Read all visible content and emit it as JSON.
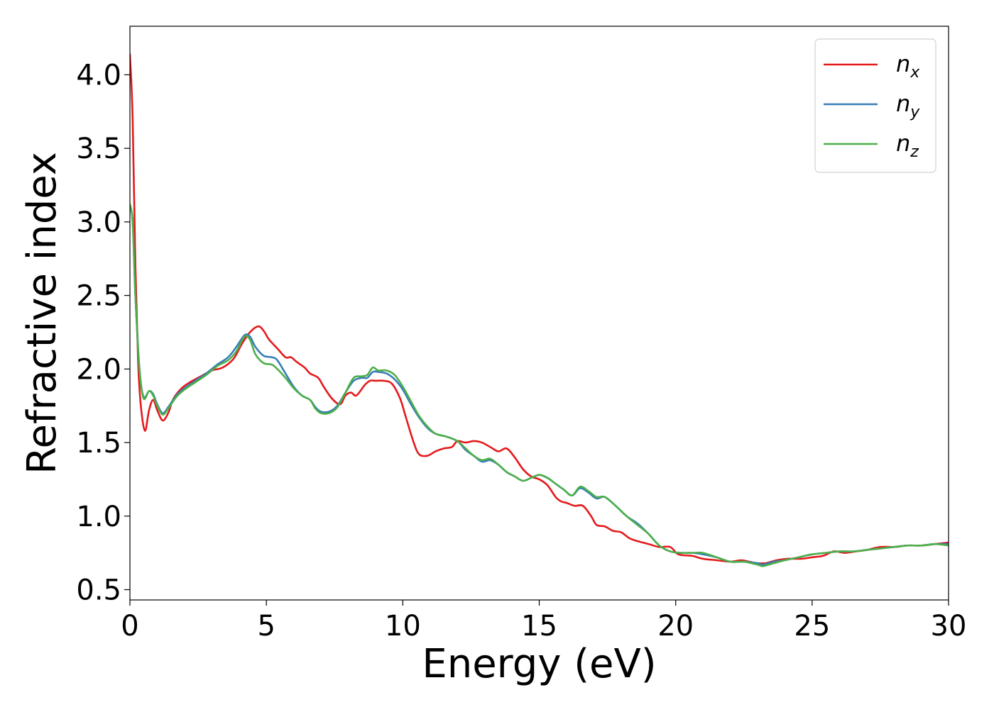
{
  "chart_data": {
    "type": "line",
    "title": "",
    "xlabel": "Energy (eV)",
    "ylabel": "Refractive index",
    "xlim": [
      0,
      30
    ],
    "ylim": [
      0.43,
      4.33
    ],
    "xticks": [
      0,
      5,
      10,
      15,
      20,
      25,
      30
    ],
    "xtick_labels": [
      "0",
      "5",
      "10",
      "15",
      "20",
      "25",
      "30"
    ],
    "yticks": [
      0.5,
      1.0,
      1.5,
      2.0,
      2.5,
      3.0,
      3.5,
      4.0
    ],
    "ytick_labels": [
      "0.5",
      "1.0",
      "1.5",
      "2.0",
      "2.5",
      "3.0",
      "3.5",
      "4.0"
    ],
    "grid": false,
    "legend_position": "top-right",
    "series": [
      {
        "name": "n_x",
        "label_base": "n",
        "label_sub": "x",
        "color": "#e41a1c",
        "x": [
          0,
          0.1,
          0.2,
          0.3,
          0.4,
          0.55,
          0.7,
          0.85,
          1.0,
          1.2,
          1.4,
          1.6,
          1.9,
          2.2,
          2.6,
          3.0,
          3.4,
          3.8,
          4.1,
          4.4,
          4.7,
          4.9,
          5.1,
          5.4,
          5.7,
          5.9,
          6.1,
          6.4,
          6.6,
          6.9,
          7.1,
          7.4,
          7.7,
          7.9,
          8.1,
          8.3,
          8.6,
          8.8,
          9.0,
          9.3,
          9.6,
          9.9,
          10.1,
          10.4,
          10.6,
          10.9,
          11.2,
          11.5,
          11.8,
          12.0,
          12.3,
          12.6,
          12.9,
          13.2,
          13.5,
          13.8,
          14.1,
          14.4,
          14.7,
          15.0,
          15.3,
          15.6,
          15.8,
          16.0,
          16.3,
          16.6,
          16.9,
          17.1,
          17.4,
          17.7,
          18.0,
          18.3,
          18.6,
          19.0,
          19.4,
          19.8,
          20.1,
          20.6,
          21.0,
          21.5,
          22.0,
          22.4,
          22.7,
          23.0,
          23.3,
          23.7,
          24.1,
          24.6,
          25.0,
          25.4,
          25.8,
          26.2,
          26.6,
          27.0,
          27.5,
          28.0,
          28.5,
          29.0,
          29.5,
          30.0
        ],
        "y": [
          4.14,
          3.7,
          2.7,
          2.05,
          1.75,
          1.58,
          1.72,
          1.79,
          1.72,
          1.65,
          1.7,
          1.8,
          1.87,
          1.91,
          1.95,
          1.99,
          2.01,
          2.07,
          2.17,
          2.25,
          2.29,
          2.26,
          2.2,
          2.14,
          2.08,
          2.08,
          2.05,
          2.01,
          1.97,
          1.94,
          1.88,
          1.8,
          1.76,
          1.82,
          1.84,
          1.82,
          1.89,
          1.92,
          1.92,
          1.92,
          1.9,
          1.8,
          1.68,
          1.5,
          1.42,
          1.41,
          1.44,
          1.46,
          1.47,
          1.51,
          1.5,
          1.51,
          1.5,
          1.47,
          1.44,
          1.46,
          1.4,
          1.32,
          1.27,
          1.25,
          1.21,
          1.13,
          1.1,
          1.09,
          1.07,
          1.07,
          1.0,
          0.94,
          0.93,
          0.9,
          0.89,
          0.85,
          0.83,
          0.81,
          0.79,
          0.79,
          0.74,
          0.73,
          0.71,
          0.7,
          0.69,
          0.7,
          0.69,
          0.68,
          0.68,
          0.7,
          0.71,
          0.71,
          0.72,
          0.73,
          0.76,
          0.75,
          0.76,
          0.77,
          0.79,
          0.79,
          0.8,
          0.8,
          0.81,
          0.82
        ]
      },
      {
        "name": "n_y",
        "label_base": "n",
        "label_sub": "y",
        "color": "#377eb8",
        "x": [
          0,
          0.1,
          0.2,
          0.35,
          0.5,
          0.7,
          0.85,
          1.0,
          1.2,
          1.4,
          1.7,
          2.0,
          2.4,
          2.8,
          3.2,
          3.6,
          3.9,
          4.2,
          4.4,
          4.6,
          4.9,
          5.2,
          5.4,
          5.7,
          6.0,
          6.3,
          6.6,
          6.8,
          7.0,
          7.3,
          7.6,
          7.9,
          8.2,
          8.5,
          8.7,
          8.9,
          9.1,
          9.4,
          9.7,
          10.0,
          10.3,
          10.6,
          10.9,
          11.2,
          11.6,
          12.0,
          12.3,
          12.6,
          12.9,
          13.2,
          13.5,
          13.8,
          14.1,
          14.4,
          14.7,
          15.0,
          15.3,
          15.6,
          15.9,
          16.2,
          16.5,
          16.8,
          17.1,
          17.4,
          17.8,
          18.2,
          18.6,
          19.0,
          19.4,
          19.8,
          20.2,
          20.6,
          21.0,
          21.5,
          22.0,
          22.5,
          23.0,
          23.2,
          23.6,
          24.0,
          24.5,
          25.0,
          25.5,
          26.0,
          26.5,
          27.0,
          27.5,
          28.0,
          28.5,
          29.0,
          29.5,
          30.0
        ],
        "y": [
          3.1,
          3.0,
          2.5,
          2.0,
          1.81,
          1.85,
          1.83,
          1.76,
          1.7,
          1.74,
          1.82,
          1.87,
          1.92,
          1.97,
          2.03,
          2.08,
          2.15,
          2.23,
          2.22,
          2.15,
          2.09,
          2.08,
          2.06,
          1.97,
          1.88,
          1.82,
          1.79,
          1.74,
          1.71,
          1.71,
          1.75,
          1.84,
          1.92,
          1.94,
          1.94,
          1.98,
          1.98,
          1.97,
          1.93,
          1.86,
          1.76,
          1.67,
          1.6,
          1.56,
          1.54,
          1.51,
          1.45,
          1.41,
          1.37,
          1.38,
          1.35,
          1.3,
          1.27,
          1.24,
          1.26,
          1.28,
          1.26,
          1.22,
          1.18,
          1.14,
          1.19,
          1.16,
          1.12,
          1.13,
          1.07,
          1.0,
          0.95,
          0.88,
          0.8,
          0.76,
          0.75,
          0.75,
          0.74,
          0.72,
          0.69,
          0.69,
          0.68,
          0.67,
          0.69,
          0.7,
          0.72,
          0.74,
          0.75,
          0.76,
          0.76,
          0.77,
          0.78,
          0.79,
          0.8,
          0.8,
          0.81,
          0.81
        ]
      },
      {
        "name": "n_z",
        "label_base": "n",
        "label_sub": "z",
        "color": "#4daf4a",
        "x": [
          0,
          0.1,
          0.2,
          0.35,
          0.5,
          0.7,
          0.85,
          1.0,
          1.2,
          1.4,
          1.7,
          2.0,
          2.4,
          2.8,
          3.2,
          3.6,
          3.9,
          4.2,
          4.4,
          4.6,
          4.9,
          5.2,
          5.4,
          5.7,
          6.0,
          6.3,
          6.6,
          6.8,
          7.0,
          7.3,
          7.6,
          7.9,
          8.2,
          8.5,
          8.7,
          8.9,
          9.1,
          9.4,
          9.7,
          10.0,
          10.3,
          10.6,
          10.9,
          11.2,
          11.6,
          12.0,
          12.3,
          12.6,
          12.9,
          13.2,
          13.5,
          13.8,
          14.1,
          14.4,
          14.7,
          15.0,
          15.3,
          15.6,
          15.9,
          16.2,
          16.5,
          16.8,
          17.1,
          17.4,
          17.8,
          18.2,
          18.6,
          19.0,
          19.4,
          19.8,
          20.2,
          20.6,
          21.0,
          21.5,
          22.0,
          22.5,
          23.0,
          23.2,
          23.6,
          24.0,
          24.5,
          25.0,
          25.5,
          26.0,
          26.5,
          27.0,
          27.5,
          28.0,
          28.5,
          29.0,
          29.5,
          30.0
        ],
        "y": [
          3.12,
          3.0,
          2.5,
          2.0,
          1.8,
          1.85,
          1.82,
          1.75,
          1.69,
          1.73,
          1.81,
          1.86,
          1.91,
          1.96,
          2.02,
          2.06,
          2.12,
          2.22,
          2.2,
          2.1,
          2.04,
          2.03,
          2.0,
          1.94,
          1.87,
          1.82,
          1.79,
          1.73,
          1.7,
          1.7,
          1.74,
          1.84,
          1.94,
          1.95,
          1.96,
          2.01,
          1.99,
          1.99,
          1.96,
          1.88,
          1.78,
          1.68,
          1.61,
          1.56,
          1.54,
          1.51,
          1.46,
          1.41,
          1.38,
          1.39,
          1.35,
          1.3,
          1.27,
          1.24,
          1.26,
          1.28,
          1.26,
          1.22,
          1.18,
          1.14,
          1.2,
          1.17,
          1.13,
          1.13,
          1.07,
          1.0,
          0.94,
          0.88,
          0.8,
          0.76,
          0.75,
          0.75,
          0.75,
          0.72,
          0.69,
          0.69,
          0.67,
          0.66,
          0.68,
          0.7,
          0.72,
          0.74,
          0.75,
          0.76,
          0.76,
          0.77,
          0.78,
          0.79,
          0.8,
          0.8,
          0.81,
          0.8
        ]
      }
    ]
  }
}
